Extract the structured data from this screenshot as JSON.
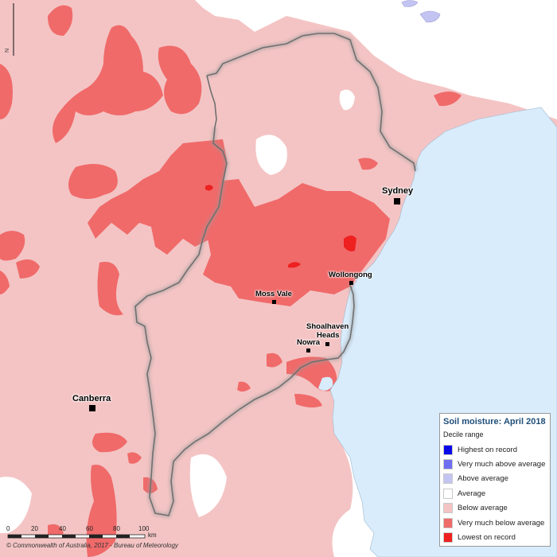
{
  "legend": {
    "title": "Soil moisture: April 2018",
    "subtitle": "Decile range",
    "items": [
      {
        "label": "Highest on record",
        "color": "#0a0ae8"
      },
      {
        "label": "Very much above average",
        "color": "#6e6ef0"
      },
      {
        "label": "Above average",
        "color": "#c4c4f2"
      },
      {
        "label": "Average",
        "color": "#ffffff"
      },
      {
        "label": "Below average",
        "color": "#f4c4c4"
      },
      {
        "label": "Very much below average",
        "color": "#f06a6a"
      },
      {
        "label": "Lowest on record",
        "color": "#ee2020"
      }
    ]
  },
  "cities": [
    {
      "name": "Sydney"
    },
    {
      "name": "Wollongong"
    },
    {
      "name": "Moss Vale"
    },
    {
      "name": "Shoalhaven"
    },
    {
      "name": "Heads"
    },
    {
      "name": "Nowra"
    },
    {
      "name": "Canberra"
    }
  ],
  "scale": {
    "ticks": [
      "0",
      "20",
      "40",
      "60",
      "80",
      "100"
    ],
    "unit": "km"
  },
  "credit": "© Commonwealth of Australia, 2017 - Bureau of Meteorology",
  "north_label": "N",
  "colors": {
    "ocean": "#d8ecfc",
    "coast_white": "#ffffff",
    "catchment_border": "#707070"
  }
}
